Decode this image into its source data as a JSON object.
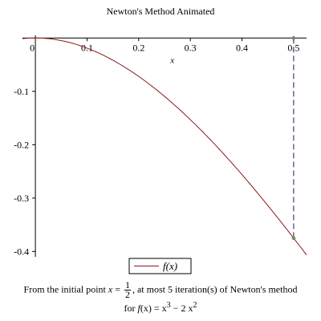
{
  "chart_data": {
    "type": "line",
    "title": "Newton's Method Animated",
    "xlabel": "x",
    "ylabel": "",
    "xlim": [
      -0.025,
      0.525
    ],
    "ylim": [
      -0.41,
      0.005
    ],
    "x_ticks": [
      0,
      0.1,
      0.2,
      0.3,
      0.4,
      0.5
    ],
    "x_tick_labels": [
      "0",
      "0.1",
      "0.2",
      "0.3",
      "0.4",
      "0.5"
    ],
    "y_ticks": [
      -0.1,
      -0.2,
      -0.3,
      -0.4
    ],
    "y_tick_labels": [
      "-0.1",
      "-0.2",
      "-0.3",
      "-0.4"
    ],
    "grid": false,
    "legend_position": "bottom-center",
    "series": [
      {
        "name": "f(x)",
        "color": "#8b1a1a",
        "function": "x^3 - 2*x^2",
        "x": [
          -0.025,
          0.0,
          0.05,
          0.1,
          0.15,
          0.2,
          0.25,
          0.3,
          0.35,
          0.4,
          0.45,
          0.5,
          0.525
        ],
        "y": [
          -0.0013,
          0.0,
          -0.0049,
          -0.019,
          -0.0416,
          -0.072,
          -0.1094,
          -0.153,
          -0.202,
          -0.256,
          -0.3139,
          -0.375,
          -0.4065
        ]
      }
    ],
    "newton_iteration": {
      "x0": 0.5,
      "fx0": -0.375,
      "line_color": "#1a1a4d",
      "point_color": "#7a8a5a"
    }
  },
  "legend": {
    "label": "f(x)"
  },
  "caption": {
    "line1_prefix": "From the initial point ",
    "line1_var": "x",
    "line1_eq": " = ",
    "frac_num": "1",
    "frac_den": "2",
    "line1_suffix": ", at most 5 iteration(s) of Newton's method",
    "line2_prefix": "for ",
    "line2_func": "f",
    "line2_arg": "(x)",
    "line2_eq": " = x",
    "line2_exp1": "3",
    "line2_mid": " − 2 x",
    "line2_exp2": "2"
  }
}
